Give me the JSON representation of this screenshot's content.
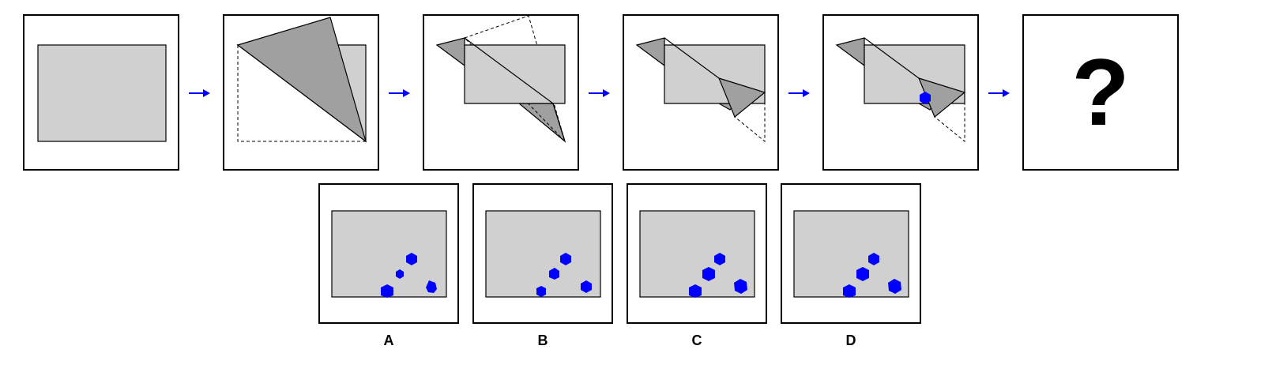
{
  "question_mark": "?",
  "options": [
    {
      "label": "A"
    },
    {
      "label": "B"
    },
    {
      "label": "C"
    },
    {
      "label": "D"
    }
  ],
  "colors": {
    "paper": "#d0d0d0",
    "folded_flap": "#a0a0a0",
    "hole": "#0000ff",
    "arrow": "#0000ff",
    "border": "#000000"
  }
}
